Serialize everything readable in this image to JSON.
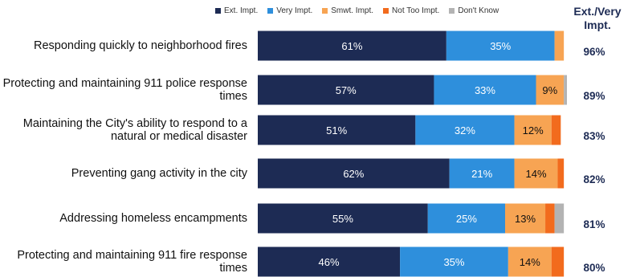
{
  "chart_data": {
    "type": "bar",
    "orientation": "horizontal",
    "stacked": true,
    "xlim": [
      0,
      100
    ],
    "legend": {
      "placement": "top",
      "entries": [
        "Ext. Impt.",
        "Very Impt.",
        "Smwt. Impt.",
        "Not Too Impt.",
        "Don't Know"
      ]
    },
    "summary_header": "Ext./Very Impt.",
    "categories": [
      "Responding quickly to neighborhood fires",
      "Protecting and maintaining 911 police response times",
      "Maintaining the City's ability to respond to a natural or medical disaster",
      "Preventing gang activity in the city",
      "Addressing homeless encampments",
      "Protecting and maintaining 911 fire response times"
    ],
    "series": [
      {
        "name": "Ext. Impt.",
        "color": "#1d2b54",
        "values": [
          61,
          57,
          51,
          62,
          55,
          46
        ],
        "labels": [
          "61%",
          "57%",
          "51%",
          "62%",
          "55%",
          "46%"
        ]
      },
      {
        "name": "Very Impt.",
        "color": "#2e8fdc",
        "values": [
          35,
          33,
          32,
          21,
          25,
          35
        ],
        "labels": [
          "35%",
          "33%",
          "32%",
          "21%",
          "25%",
          "35%"
        ]
      },
      {
        "name": "Smwt. Impt.",
        "color": "#f7a453",
        "values": [
          3,
          9,
          12,
          14,
          13,
          14
        ],
        "labels": [
          "",
          "9%",
          "12%",
          "14%",
          "13%",
          "14%"
        ]
      },
      {
        "name": "Not Too Impt.",
        "color": "#f26b1d",
        "values": [
          0,
          0,
          3,
          2,
          3,
          4
        ],
        "labels": [
          "",
          "",
          "",
          "",
          "",
          ""
        ]
      },
      {
        "name": "Don't Know",
        "color": "#b3b3b3",
        "values": [
          0,
          1,
          0,
          0,
          3,
          0
        ],
        "labels": [
          "",
          "",
          "",
          "",
          "",
          ""
        ]
      }
    ],
    "summary_values": [
      "96%",
      "89%",
      "83%",
      "82%",
      "81%",
      "80%"
    ]
  }
}
